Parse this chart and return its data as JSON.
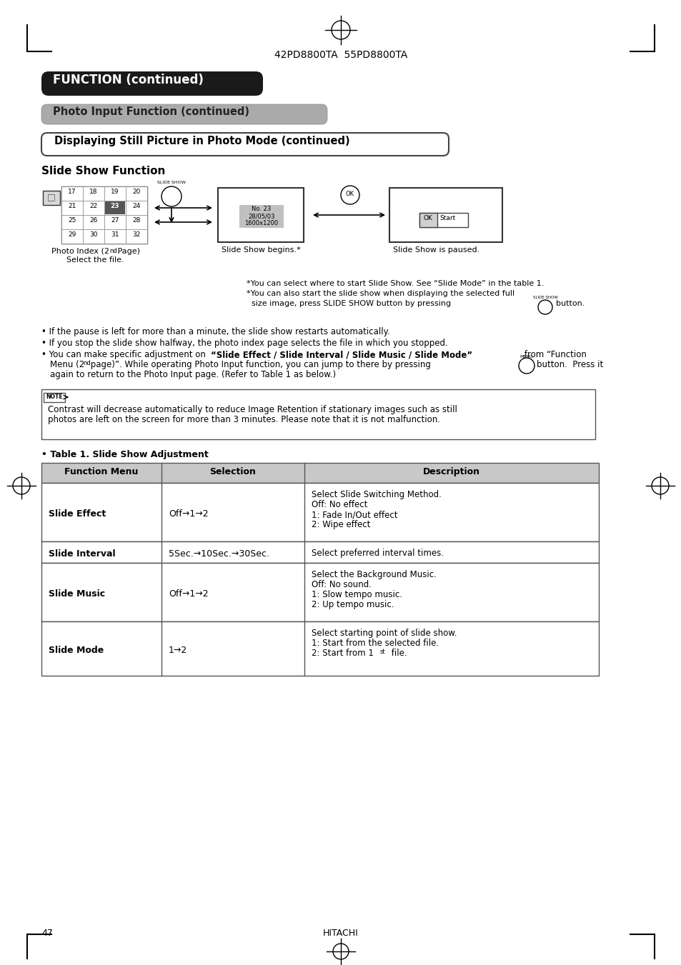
{
  "page_title": "42PD8800TA  55PD8800TA",
  "header1_text": "FUNCTION (continued)",
  "header2_text": "Photo Input Function (continued)",
  "header3_text": "Displaying Still Picture in Photo Mode (continued)",
  "section_title": "Slide Show Function",
  "footnote1": "*You can select where to start Slide Show. See “Slide Mode” in the table 1.",
  "footnote2": "*You can also start the slide show when displaying the selected full",
  "footnote3": "  size image, press SLIDE SHOW button by pressing",
  "bullet1": "• If the pause is left for more than a minute, the slide show restarts automatically.",
  "bullet2": "• If you stop the slide show halfway, the photo index page selects the file in which you stopped.",
  "note_text1": "Contrast will decrease automatically to reduce Image Retention if stationary images such as still",
  "note_text2": "photos are left on the screen for more than 3 minutes. Please note that it is not malfunction.",
  "table_title": "• Table 1. Slide Show Adjustment",
  "table_headers": [
    "Function Menu",
    "Selection",
    "Description"
  ],
  "table_rows": [
    [
      "Slide Effect",
      "Off→1→2",
      "Select Slide Switching Method.\nOff: No effect\n1: Fade In/Out effect\n2: Wipe effect"
    ],
    [
      "Slide Interval",
      "5Sec.→10Sec.→30Sec.",
      "Select preferred interval times."
    ],
    [
      "Slide Music",
      "Off→1→2",
      "Select the Background Music.\nOff: No sound.\n1: Slow tempo music.\n2: Up tempo music."
    ],
    [
      "Slide Mode",
      "1→2",
      "Select starting point of slide show.\n1: Start from the selected file.\n2: Start from 1st file."
    ]
  ],
  "page_number": "47",
  "footer_text": "HITACHI",
  "bg_color": "#ffffff",
  "header1_bg": "#1a1a1a",
  "header2_bg": "#aaaaaa",
  "table_header_bg": "#c8c8c8"
}
